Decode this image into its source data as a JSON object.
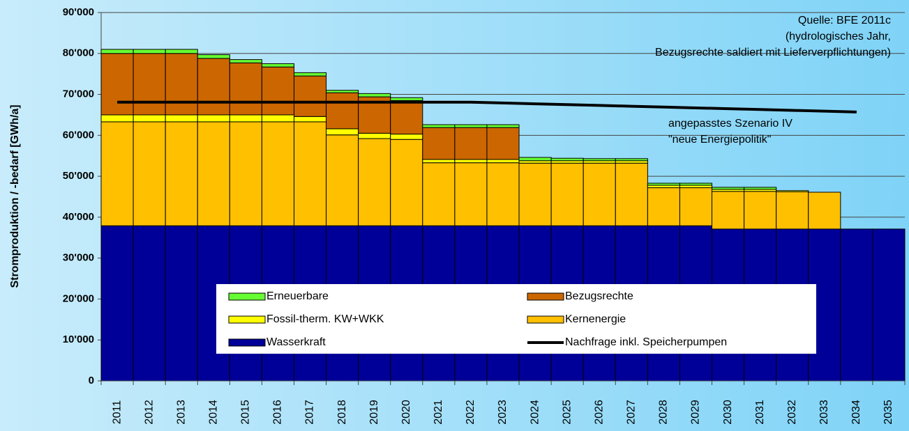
{
  "chart_data": {
    "type": "bar",
    "stacked": true,
    "ylabel": "Stromproduktion / -bedarf [GWh/a]",
    "annotations": [
      "Quelle: BFE 2011c",
      "(hydrologisches Jahr,",
      "Bezugsrechte saldiert mit Lieferverpflichtungen)",
      "angepasstes Szenario IV",
      "\"neue Energiepolitik\""
    ],
    "categories": [
      "2011",
      "2012",
      "2013",
      "2014",
      "2015",
      "2016",
      "2017",
      "2018",
      "2019",
      "2020",
      "2021",
      "2022",
      "2023",
      "2024",
      "2025",
      "2026",
      "2027",
      "2028",
      "2029",
      "2030",
      "2031",
      "2032",
      "2033",
      "2034",
      "2035"
    ],
    "series": [
      {
        "name": "Wasserkraft",
        "color": "#000099",
        "values": [
          37900,
          37900,
          37900,
          37900,
          37900,
          37900,
          37900,
          37900,
          37900,
          37900,
          37900,
          37900,
          37900,
          37900,
          37900,
          37900,
          37900,
          37900,
          37900,
          37100,
          37100,
          37100,
          37100,
          37100,
          37100
        ]
      },
      {
        "name": "Kernenergie",
        "color": "#ffc000",
        "values": [
          25400,
          25400,
          25400,
          25400,
          25400,
          25400,
          25400,
          22200,
          21300,
          21100,
          15400,
          15400,
          15400,
          15300,
          15300,
          15300,
          15300,
          9300,
          9300,
          9200,
          9200,
          9100,
          9000,
          0,
          0
        ]
      },
      {
        "name": "Fossil-therm. KW+WKK",
        "color": "#ffff00",
        "values": [
          1700,
          1700,
          1700,
          1700,
          1700,
          1700,
          1300,
          1500,
          1300,
          1300,
          800,
          800,
          800,
          600,
          600,
          600,
          600,
          600,
          600,
          500,
          500,
          300,
          0,
          0,
          0
        ]
      },
      {
        "name": "Bezugsrechte",
        "color": "#cc6600",
        "values": [
          15000,
          15000,
          15000,
          13800,
          12700,
          11700,
          9900,
          8800,
          8900,
          8200,
          7800,
          7800,
          7800,
          0,
          0,
          0,
          0,
          0,
          0,
          0,
          0,
          0,
          0,
          0,
          0
        ]
      },
      {
        "name": "Erneuerbare",
        "color": "#66ff33",
        "values": [
          1000,
          1000,
          1000,
          900,
          800,
          800,
          800,
          600,
          800,
          700,
          700,
          700,
          700,
          800,
          600,
          500,
          500,
          500,
          500,
          500,
          500,
          0,
          0,
          0,
          0
        ]
      },
      {
        "name": "Nachfrage inkl. Speicherpumpen",
        "type": "line",
        "color": "#000000",
        "values": [
          68100,
          68100,
          68100,
          68100,
          68100,
          68100,
          68100,
          68100,
          68100,
          68100,
          68100,
          68100,
          67900,
          67700,
          67500,
          67300,
          67100,
          66900,
          66700,
          66500,
          66300,
          66100,
          65900,
          65700,
          null
        ]
      }
    ],
    "ylim": [
      0,
      90000
    ],
    "yticks": [
      0,
      {
        "value": 10000,
        "label": "10'000"
      },
      {
        "value": 20000,
        "label": "20'000"
      },
      {
        "value": 30000,
        "label": "30'000"
      },
      {
        "value": 40000,
        "label": "40'000"
      },
      {
        "value": 50000,
        "label": "50'000"
      },
      {
        "value": 60000,
        "label": "60'000"
      },
      {
        "value": 70000,
        "label": "70'000"
      },
      {
        "value": 80000,
        "label": "80'000"
      },
      {
        "value": 90000,
        "label": "90'000"
      }
    ],
    "grid": true
  }
}
